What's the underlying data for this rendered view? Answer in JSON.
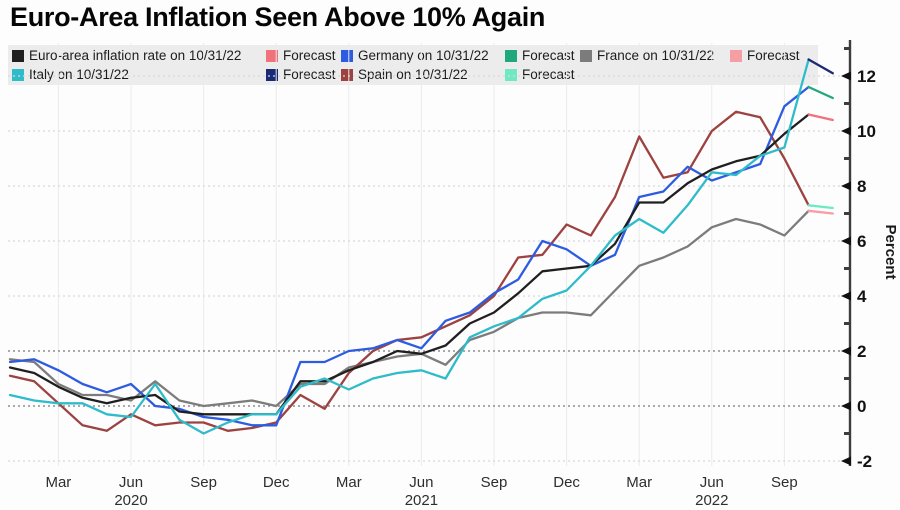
{
  "title": "Euro-Area Inflation Seen Above 10% Again",
  "axis": {
    "y_title": "Percent"
  },
  "chart_data": {
    "type": "line",
    "title": "Euro-Area Inflation Seen Above 10% Again",
    "ylabel": "Percent",
    "x_range": [
      "2020-01",
      "2022-10"
    ],
    "forecast_x": "2022-11",
    "ylim": [
      -2.5,
      13
    ],
    "yticks": [
      -2,
      0,
      2,
      4,
      6,
      8,
      10,
      12
    ],
    "yticks_minor": [
      -1,
      1,
      3,
      5,
      7,
      9,
      11,
      13
    ],
    "emphasis_gridlines": [
      0,
      2
    ],
    "grid": "on",
    "legend_position": "top",
    "x_ticks": [
      {
        "m": 2,
        "label": "Mar"
      },
      {
        "m": 5,
        "label": "Jun"
      },
      {
        "m": 8,
        "label": "Sep"
      },
      {
        "m": 11,
        "label": "Dec"
      },
      {
        "m": 14,
        "label": "Mar"
      },
      {
        "m": 17,
        "label": "Jun"
      },
      {
        "m": 20,
        "label": "Sep"
      },
      {
        "m": 23,
        "label": "Dec"
      },
      {
        "m": 26,
        "label": "Mar"
      },
      {
        "m": 29,
        "label": "Jun"
      },
      {
        "m": 32,
        "label": "Sep"
      }
    ],
    "x_years": [
      {
        "m": 5,
        "label": "2020"
      },
      {
        "m": 17,
        "label": "2021"
      },
      {
        "m": 29,
        "label": "2022"
      }
    ],
    "series": [
      {
        "name": "Euro-area inflation rate on 10/31/22",
        "color": "#1f1f1f",
        "z": 3,
        "values": [
          1.4,
          1.2,
          0.7,
          0.3,
          0.1,
          0.3,
          0.4,
          -0.2,
          -0.3,
          -0.3,
          -0.3,
          -0.3,
          0.9,
          0.9,
          1.3,
          1.6,
          2.0,
          1.9,
          2.2,
          3.0,
          3.4,
          4.1,
          4.9,
          5.0,
          5.1,
          5.9,
          7.4,
          7.4,
          8.1,
          8.6,
          8.9,
          9.1,
          9.9,
          10.6
        ],
        "forecast": {
          "name": "Forecast",
          "color": "#f0737c",
          "values": [
            10.6,
            10.4
          ]
        }
      },
      {
        "name": "Germany on 10/31/22",
        "color": "#2d5ce0",
        "z": 2,
        "values": [
          1.6,
          1.7,
          1.3,
          0.8,
          0.5,
          0.8,
          0.0,
          -0.1,
          -0.4,
          -0.5,
          -0.7,
          -0.7,
          1.6,
          1.6,
          2.0,
          2.1,
          2.4,
          2.1,
          3.1,
          3.4,
          4.1,
          4.6,
          6.0,
          5.7,
          5.1,
          5.5,
          7.6,
          7.8,
          8.7,
          8.2,
          8.5,
          8.8,
          10.9,
          11.6
        ],
        "forecast": {
          "name": "Forecast",
          "color": "#1fa87d",
          "values": [
            11.6,
            11.2
          ]
        }
      },
      {
        "name": "France on 10/31/22",
        "color": "#7c7c7c",
        "z": 0,
        "values": [
          1.7,
          1.6,
          0.8,
          0.4,
          0.4,
          0.2,
          0.9,
          0.2,
          0.0,
          0.1,
          0.2,
          0.0,
          0.8,
          0.8,
          1.4,
          1.6,
          1.8,
          1.9,
          1.5,
          2.4,
          2.7,
          3.2,
          3.4,
          3.4,
          3.3,
          4.2,
          5.1,
          5.4,
          5.8,
          6.5,
          6.8,
          6.6,
          6.2,
          7.1
        ],
        "forecast": {
          "name": "Forecast",
          "color": "#f59fa5",
          "values": [
            7.1,
            7.0
          ]
        }
      },
      {
        "name": "Italy on 10/31/22",
        "color": "#2fbcca",
        "z": 4,
        "values": [
          0.4,
          0.2,
          0.1,
          0.1,
          -0.3,
          -0.4,
          0.8,
          -0.5,
          -1.0,
          -0.6,
          -0.3,
          -0.3,
          0.7,
          1.0,
          0.6,
          1.0,
          1.2,
          1.3,
          1.0,
          2.5,
          2.9,
          3.2,
          3.9,
          4.2,
          5.1,
          6.2,
          6.8,
          6.3,
          7.3,
          8.5,
          8.4,
          9.1,
          9.4,
          12.6
        ],
        "forecast": {
          "name": "Forecast",
          "color": "#1b2a74",
          "values": [
            12.6,
            12.1
          ]
        }
      },
      {
        "name": "Spain on 10/31/22",
        "color": "#9c4240",
        "z": 1,
        "values": [
          1.1,
          0.9,
          0.1,
          -0.7,
          -0.9,
          -0.3,
          -0.7,
          -0.6,
          -0.6,
          -0.9,
          -0.8,
          -0.6,
          0.4,
          -0.1,
          1.2,
          2.0,
          2.4,
          2.5,
          2.9,
          3.3,
          4.0,
          5.4,
          5.5,
          6.6,
          6.2,
          7.6,
          9.8,
          8.3,
          8.5,
          10.0,
          10.7,
          10.5,
          9.0,
          7.3
        ],
        "forecast": {
          "name": "Forecast",
          "color": "#6fe9c3",
          "values": [
            7.3,
            7.2
          ]
        }
      }
    ]
  }
}
